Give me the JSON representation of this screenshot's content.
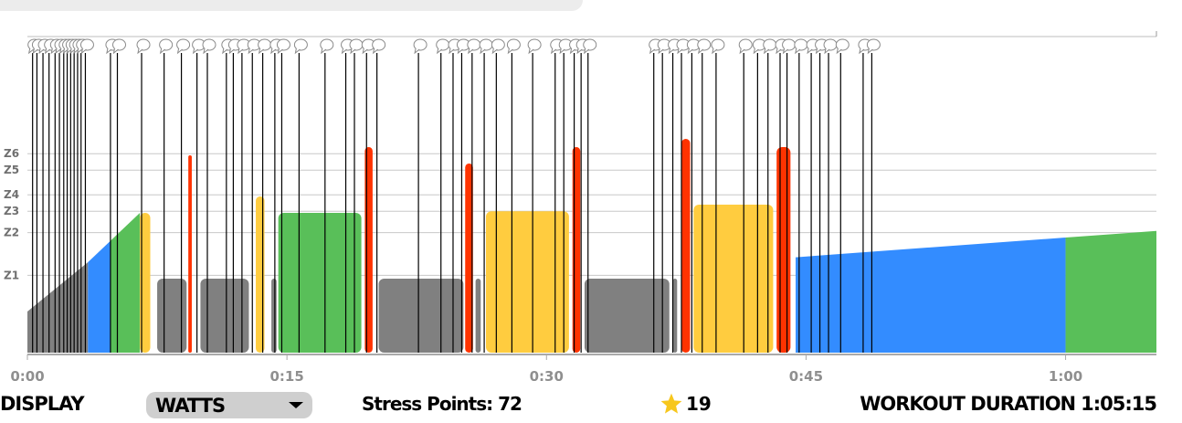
{
  "zone_labels": [
    "Z1",
    "Z2",
    "Z3",
    "Z4",
    "Z5",
    "Z6"
  ],
  "time_axis": {
    "max_minutes": 65.25,
    "ticks": [
      {
        "minute": 0,
        "label": "0:00"
      },
      {
        "minute": 15,
        "label": "0:15"
      },
      {
        "minute": 30,
        "label": "0:30"
      },
      {
        "minute": 45,
        "label": "0:45"
      },
      {
        "minute": 60,
        "label": "1:00"
      }
    ]
  },
  "zone_colors": {
    "z1": "#808080",
    "z2": "#338cff",
    "z3": "#59bf59",
    "z4": "#ffcc3f",
    "z5": "#ff6633",
    "z6": "#ff3300",
    "text_event_line": "#000000"
  },
  "segments": [
    {
      "type": "ramp",
      "start": 0.0,
      "end": 3.5,
      "from": 0.25,
      "to": 0.55,
      "zone": "z1"
    },
    {
      "type": "ramp",
      "start": 3.5,
      "end": 4.8,
      "from": 0.55,
      "to": 0.68,
      "zone": "z2"
    },
    {
      "type": "ramp",
      "start": 4.8,
      "end": 6.5,
      "from": 0.68,
      "to": 0.85,
      "zone": "z3"
    },
    {
      "type": "steady",
      "start": 6.5,
      "end": 7.1,
      "power": 0.85,
      "zone": "z4"
    },
    {
      "type": "steady",
      "start": 7.5,
      "end": 9.2,
      "power": 0.45,
      "zone": "z1"
    },
    {
      "type": "steady",
      "start": 9.3,
      "end": 9.5,
      "power": 1.2,
      "zone": "z6"
    },
    {
      "type": "steady",
      "start": 10.0,
      "end": 12.8,
      "power": 0.45,
      "zone": "z1"
    },
    {
      "type": "steady",
      "start": 13.2,
      "end": 13.7,
      "power": 0.95,
      "zone": "z4"
    },
    {
      "type": "steady",
      "start": 14.1,
      "end": 14.4,
      "power": 0.45,
      "zone": "z1"
    },
    {
      "type": "steady",
      "start": 14.5,
      "end": 19.3,
      "power": 0.85,
      "zone": "z3"
    },
    {
      "type": "steady",
      "start": 19.5,
      "end": 19.95,
      "power": 1.25,
      "zone": "z6"
    },
    {
      "type": "steady",
      "start": 20.3,
      "end": 25.2,
      "power": 0.45,
      "zone": "z1"
    },
    {
      "type": "steady",
      "start": 25.3,
      "end": 25.75,
      "power": 1.15,
      "zone": "z6"
    },
    {
      "type": "steady",
      "start": 25.9,
      "end": 26.2,
      "power": 0.45,
      "zone": "z1"
    },
    {
      "type": "steady",
      "start": 26.5,
      "end": 31.3,
      "power": 0.86,
      "zone": "z4"
    },
    {
      "type": "steady",
      "start": 31.5,
      "end": 31.95,
      "power": 1.25,
      "zone": "z6"
    },
    {
      "type": "steady",
      "start": 32.2,
      "end": 37.1,
      "power": 0.45,
      "zone": "z1"
    },
    {
      "type": "steady",
      "start": 37.3,
      "end": 37.55,
      "power": 0.45,
      "zone": "z1"
    },
    {
      "type": "steady",
      "start": 37.8,
      "end": 38.3,
      "power": 1.3,
      "zone": "z6"
    },
    {
      "type": "steady",
      "start": 38.5,
      "end": 43.1,
      "power": 0.9,
      "zone": "z4"
    },
    {
      "type": "steady",
      "start": 43.3,
      "end": 44.1,
      "power": 1.25,
      "zone": "z6"
    },
    {
      "type": "ramp",
      "start": 44.4,
      "end": 60.0,
      "from": 0.58,
      "to": 0.7,
      "zone": "z2"
    },
    {
      "type": "ramp",
      "start": 60.0,
      "end": 65.25,
      "from": 0.7,
      "to": 0.74,
      "zone": "z3"
    }
  ],
  "text_events_minutes": [
    0.3,
    0.55,
    0.9,
    1.25,
    1.6,
    1.85,
    2.1,
    2.3,
    2.5,
    2.7,
    2.9,
    3.1,
    3.35,
    4.8,
    5.2,
    6.6,
    7.9,
    8.9,
    9.8,
    10.4,
    11.5,
    11.9,
    12.4,
    13.0,
    13.6,
    14.3,
    14.7,
    15.7,
    17.2,
    18.4,
    18.9,
    19.6,
    20.2,
    22.6,
    23.9,
    24.6,
    25.1,
    25.7,
    26.4,
    27.1,
    28.0,
    29.2,
    30.5,
    31.0,
    31.6,
    32.0,
    32.4,
    36.2,
    36.7,
    37.3,
    37.8,
    38.4,
    39.0,
    39.8,
    41.4,
    42.2,
    42.8,
    43.5,
    43.9,
    44.6,
    45.3,
    45.8,
    46.3,
    47.0,
    48.3,
    48.8
  ],
  "bottom_bar": {
    "display_label": "DISPLAY",
    "display_value": "WATTS",
    "stress_label": "Stress Points:",
    "stress_value": "72",
    "rating_value": "19",
    "duration_label": "WORKOUT DURATION",
    "duration_value": "1:05:15"
  }
}
